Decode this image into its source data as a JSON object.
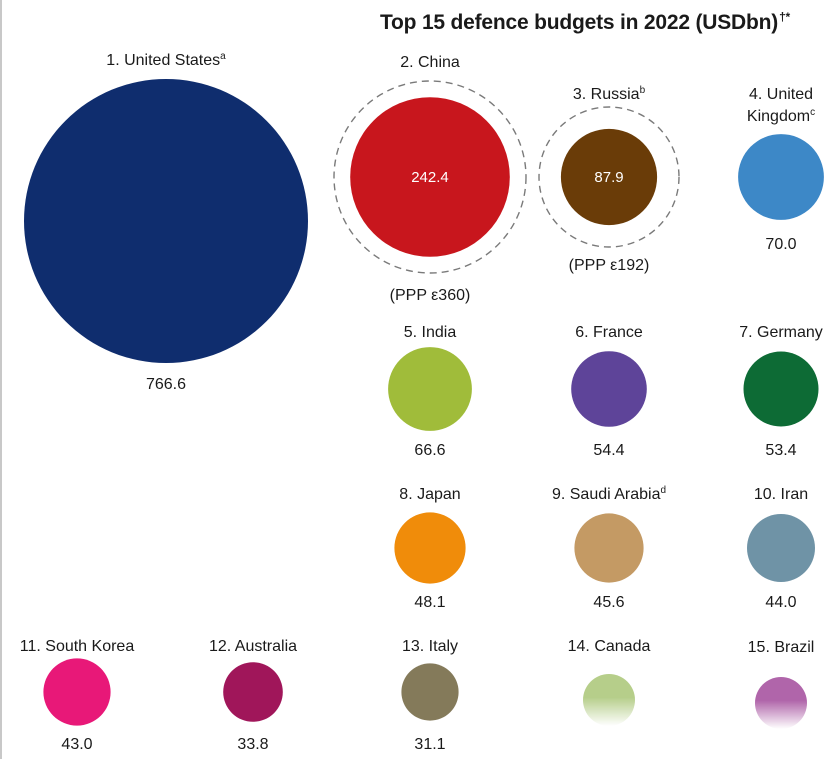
{
  "title": "Top 15 defence budgets in 2022 (USDbn)",
  "title_marks": "†*",
  "chart_data": {
    "type": "bubble",
    "title": "Top 15 defence budgets in 2022 (USDbn)",
    "unit": "USDbn",
    "series": [
      {
        "rank": 1,
        "country": "United States",
        "label": "1. United States",
        "note": "a",
        "value": 766.6,
        "color": "#0f2d6e"
      },
      {
        "rank": 2,
        "country": "China",
        "label": "2. China",
        "note": "",
        "value": 242.4,
        "color": "#c8161d",
        "ppp": "(PPP ε360)"
      },
      {
        "rank": 3,
        "country": "Russia",
        "label": "3. Russia",
        "note": "b",
        "value": 87.9,
        "color": "#6a3c08",
        "ppp": "(PPP ε192)"
      },
      {
        "rank": 4,
        "country": "United Kingdom",
        "label": "4. United Kingdom",
        "note": "c",
        "value": 70.0,
        "color": "#3d88c7"
      },
      {
        "rank": 5,
        "country": "India",
        "label": "5. India",
        "note": "",
        "value": 66.6,
        "color": "#a0bc3a"
      },
      {
        "rank": 6,
        "country": "France",
        "label": "6. France",
        "note": "",
        "value": 54.4,
        "color": "#5e4499"
      },
      {
        "rank": 7,
        "country": "Germany",
        "label": "7. Germany",
        "note": "",
        "value": 53.4,
        "color": "#0d6b35"
      },
      {
        "rank": 8,
        "country": "Japan",
        "label": "8. Japan",
        "note": "",
        "value": 48.1,
        "color": "#f08c0a"
      },
      {
        "rank": 9,
        "country": "Saudi Arabia",
        "label": "9. Saudi Arabia",
        "note": "d",
        "value": 45.6,
        "color": "#c49a64"
      },
      {
        "rank": 10,
        "country": "Iran",
        "label": "10. Iran",
        "note": "",
        "value": 44.0,
        "color": "#6f93a6"
      },
      {
        "rank": 11,
        "country": "South Korea",
        "label": "11. South Korea",
        "note": "",
        "value": 43.0,
        "color": "#e81878"
      },
      {
        "rank": 12,
        "country": "Australia",
        "label": "12. Australia",
        "note": "",
        "value": 33.8,
        "color": "#a0165a"
      },
      {
        "rank": 13,
        "country": "Italy",
        "label": "13. Italy",
        "note": "",
        "value": 31.1,
        "color": "#847a5a"
      },
      {
        "rank": 14,
        "country": "Canada",
        "label": "14. Canada",
        "note": "",
        "value": null,
        "color": "#b6ce8a"
      },
      {
        "rank": 15,
        "country": "Brazil",
        "label": "15. Brazil",
        "note": "",
        "value": null,
        "color": "#b065aa"
      }
    ]
  }
}
